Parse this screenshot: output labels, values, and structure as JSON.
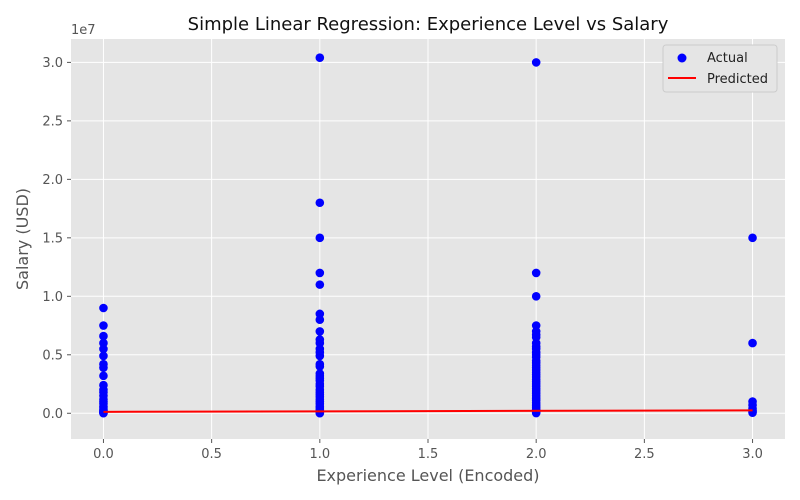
{
  "chart_data": {
    "type": "scatter",
    "title": "Simple Linear Regression: Experience Level vs Salary",
    "xlabel": "Experience Level (Encoded)",
    "ylabel": "Salary (USD)",
    "y_offset_label": "1e7",
    "xlim": [
      -0.15,
      3.15
    ],
    "ylim": [
      -2200000,
      32000000
    ],
    "x_ticks": [
      0.0,
      0.5,
      1.0,
      1.5,
      2.0,
      2.5,
      3.0
    ],
    "x_tick_labels": [
      "0.0",
      "0.5",
      "1.0",
      "1.5",
      "2.0",
      "2.5",
      "3.0"
    ],
    "y_ticks": [
      0,
      5000000,
      10000000,
      15000000,
      20000000,
      25000000,
      30000000
    ],
    "y_tick_labels": [
      "0.0",
      "0.5",
      "1.0",
      "1.5",
      "2.0",
      "2.5",
      "3.0"
    ],
    "grid": true,
    "legend_position": "top-right",
    "colors": {
      "background": "#e5e5e5",
      "grid": "#ffffff",
      "actual": "#0000ff",
      "predicted": "#ff0000",
      "text": "#555555"
    },
    "series": [
      {
        "name": "Actual",
        "kind": "scatter",
        "points": [
          [
            0,
            9000000
          ],
          [
            0,
            7500000
          ],
          [
            0,
            6600000
          ],
          [
            0,
            6000000
          ],
          [
            0,
            5500000
          ],
          [
            0,
            4900000
          ],
          [
            0,
            4200000
          ],
          [
            0,
            3900000
          ],
          [
            0,
            3200000
          ],
          [
            0,
            2400000
          ],
          [
            0,
            2000000
          ],
          [
            0,
            1800000
          ],
          [
            0,
            1500000
          ],
          [
            0,
            1200000
          ],
          [
            0,
            1000000
          ],
          [
            0,
            800000
          ],
          [
            0,
            600000
          ],
          [
            0,
            450000
          ],
          [
            0,
            300000
          ],
          [
            0,
            200000
          ],
          [
            0,
            120000
          ],
          [
            0,
            80000
          ],
          [
            0,
            40000
          ],
          [
            0,
            10000
          ],
          [
            1,
            30400000
          ],
          [
            1,
            18000000
          ],
          [
            1,
            15000000
          ],
          [
            1,
            12000000
          ],
          [
            1,
            11000000
          ],
          [
            1,
            8500000
          ],
          [
            1,
            8000000
          ],
          [
            1,
            7000000
          ],
          [
            1,
            6300000
          ],
          [
            1,
            6000000
          ],
          [
            1,
            5500000
          ],
          [
            1,
            5200000
          ],
          [
            1,
            4900000
          ],
          [
            1,
            4200000
          ],
          [
            1,
            4000000
          ],
          [
            1,
            3400000
          ],
          [
            1,
            3200000
          ],
          [
            1,
            3000000
          ],
          [
            1,
            2800000
          ],
          [
            1,
            2500000
          ],
          [
            1,
            2300000
          ],
          [
            1,
            2000000
          ],
          [
            1,
            1800000
          ],
          [
            1,
            1600000
          ],
          [
            1,
            1400000
          ],
          [
            1,
            1200000
          ],
          [
            1,
            1000000
          ],
          [
            1,
            800000
          ],
          [
            1,
            600000
          ],
          [
            1,
            450000
          ],
          [
            1,
            300000
          ],
          [
            1,
            200000
          ],
          [
            1,
            120000
          ],
          [
            1,
            60000
          ],
          [
            1,
            10000
          ],
          [
            2,
            30000000
          ],
          [
            2,
            12000000
          ],
          [
            2,
            10000000
          ],
          [
            2,
            7500000
          ],
          [
            2,
            7000000
          ],
          [
            2,
            6700000
          ],
          [
            2,
            6500000
          ],
          [
            2,
            6000000
          ],
          [
            2,
            5700000
          ],
          [
            2,
            5500000
          ],
          [
            2,
            5200000
          ],
          [
            2,
            5000000
          ],
          [
            2,
            4800000
          ],
          [
            2,
            4500000
          ],
          [
            2,
            4300000
          ],
          [
            2,
            4100000
          ],
          [
            2,
            3900000
          ],
          [
            2,
            3700000
          ],
          [
            2,
            3500000
          ],
          [
            2,
            3300000
          ],
          [
            2,
            3100000
          ],
          [
            2,
            2900000
          ],
          [
            2,
            2700000
          ],
          [
            2,
            2500000
          ],
          [
            2,
            2300000
          ],
          [
            2,
            2100000
          ],
          [
            2,
            1900000
          ],
          [
            2,
            1700000
          ],
          [
            2,
            1500000
          ],
          [
            2,
            1300000
          ],
          [
            2,
            1100000
          ],
          [
            2,
            900000
          ],
          [
            2,
            700000
          ],
          [
            2,
            500000
          ],
          [
            2,
            350000
          ],
          [
            2,
            200000
          ],
          [
            2,
            100000
          ],
          [
            2,
            20000
          ],
          [
            3,
            15000000
          ],
          [
            3,
            6000000
          ],
          [
            3,
            1000000
          ],
          [
            3,
            700000
          ],
          [
            3,
            400000
          ],
          [
            3,
            250000
          ],
          [
            3,
            150000
          ],
          [
            3,
            50000
          ]
        ]
      },
      {
        "name": "Predicted",
        "kind": "line",
        "x": [
          0,
          3
        ],
        "y": [
          120000,
          250000
        ]
      }
    ]
  }
}
